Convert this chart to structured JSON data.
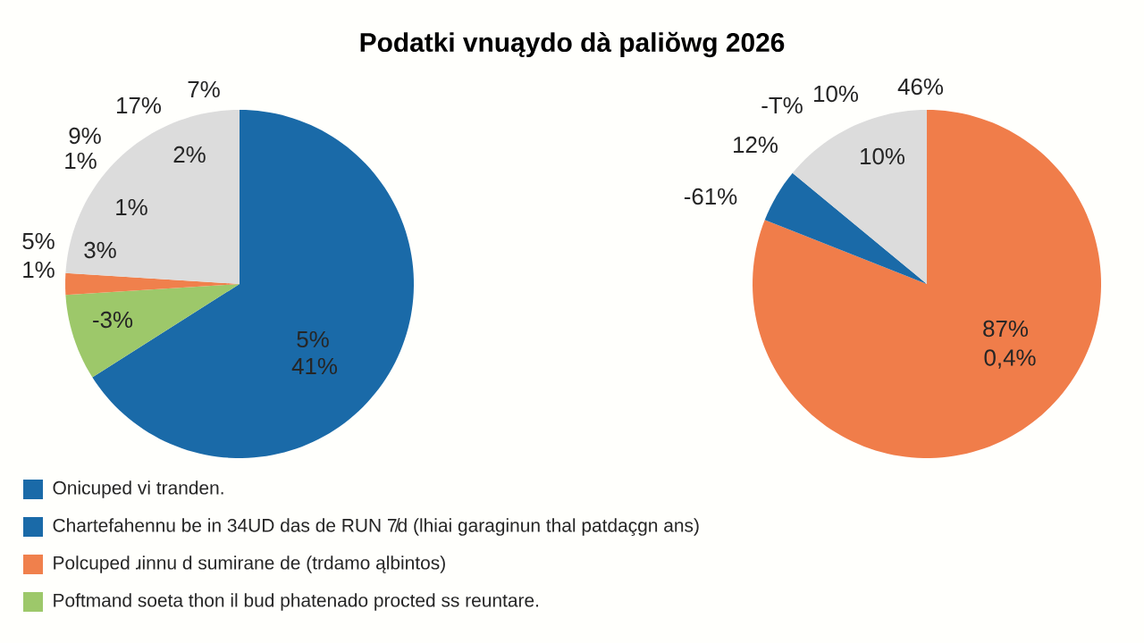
{
  "chart_data": [
    {
      "type": "pie",
      "title": "Podatki vnuąydo dà paliŏwg 2026",
      "categories": [
        "Onicuped vi tranden.",
        "Poftmand soeta thon il bud phatenado procted ss reuntare.",
        "Polcuped ɹinnu d sumirane de (trdamo ąlbintos)",
        null
      ],
      "values": [
        66,
        8,
        2,
        24
      ],
      "colors": [
        "#1a6aa8",
        "#9dc86a",
        "#f0804c",
        "#dcdcdc"
      ],
      "legend": "bottom",
      "annotations": [
        "7%",
        "17%",
        "9%",
        "1%",
        "2%",
        "1%",
        "5%",
        "3%",
        "1%",
        "-3%",
        "5%",
        "41%"
      ]
    },
    {
      "type": "pie",
      "categories": [
        null,
        "Chartefahennu be in 34UD das de RUN 7̸d (lhiai garaginun thal patdaçgn ans)",
        null
      ],
      "values": [
        81,
        5,
        14
      ],
      "colors": [
        "#f07d4a",
        "#1a6aa8",
        "#dcdcdc"
      ],
      "legend": "bottom",
      "annotations": [
        "-T%",
        "10%",
        "46%",
        "12%",
        "10%",
        "-61%",
        "87%",
        "0,4%"
      ]
    }
  ]
}
